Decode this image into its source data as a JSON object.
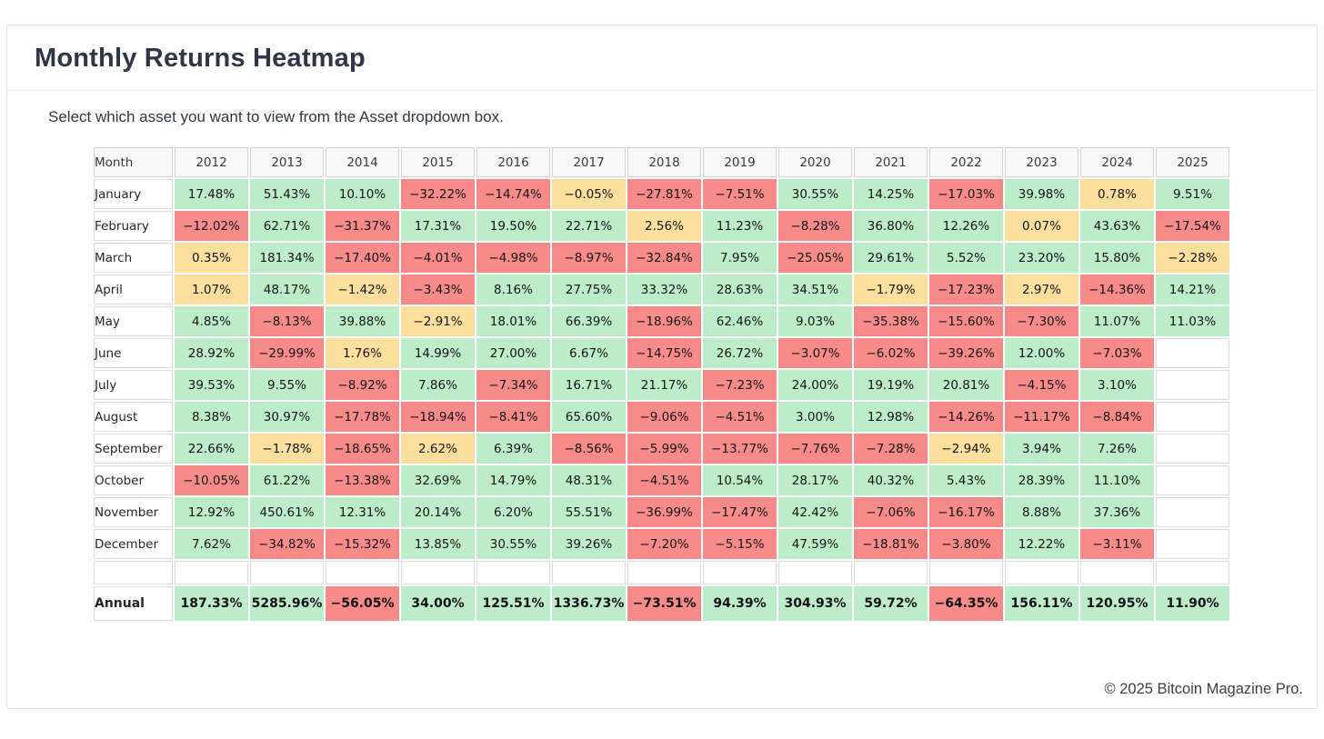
{
  "page": {
    "title": "Monthly Returns Heatmap",
    "subtitle": "Select which asset you want to view from the Asset dropdown box.",
    "footer": "© 2025 Bitcoin Magazine Pro."
  },
  "chart_data": {
    "type": "heatmap",
    "title": "Monthly Returns Heatmap",
    "columns": [
      "Month",
      "2012",
      "2013",
      "2014",
      "2015",
      "2016",
      "2017",
      "2018",
      "2019",
      "2020",
      "2021",
      "2022",
      "2023",
      "2024",
      "2025"
    ],
    "rows": [
      {
        "label": "January",
        "values": [
          "17.48%",
          "51.43%",
          "10.10%",
          "−32.22%",
          "−14.74%",
          "−0.05%",
          "−27.81%",
          "−7.51%",
          "30.55%",
          "14.25%",
          "−17.03%",
          "39.98%",
          "0.78%",
          "9.51%"
        ]
      },
      {
        "label": "February",
        "values": [
          "−12.02%",
          "62.71%",
          "−31.37%",
          "17.31%",
          "19.50%",
          "22.71%",
          "2.56%",
          "11.23%",
          "−8.28%",
          "36.80%",
          "12.26%",
          "0.07%",
          "43.63%",
          "−17.54%"
        ]
      },
      {
        "label": "March",
        "values": [
          "0.35%",
          "181.34%",
          "−17.40%",
          "−4.01%",
          "−4.98%",
          "−8.97%",
          "−32.84%",
          "7.95%",
          "−25.05%",
          "29.61%",
          "5.52%",
          "23.20%",
          "15.80%",
          "−2.28%"
        ]
      },
      {
        "label": "April",
        "values": [
          "1.07%",
          "48.17%",
          "−1.42%",
          "−3.43%",
          "8.16%",
          "27.75%",
          "33.32%",
          "28.63%",
          "34.51%",
          "−1.79%",
          "−17.23%",
          "2.97%",
          "−14.36%",
          "14.21%"
        ]
      },
      {
        "label": "May",
        "values": [
          "4.85%",
          "−8.13%",
          "39.88%",
          "−2.91%",
          "18.01%",
          "66.39%",
          "−18.96%",
          "62.46%",
          "9.03%",
          "−35.38%",
          "−15.60%",
          "−7.30%",
          "11.07%",
          "11.03%"
        ]
      },
      {
        "label": "June",
        "values": [
          "28.92%",
          "−29.99%",
          "1.76%",
          "14.99%",
          "27.00%",
          "6.67%",
          "−14.75%",
          "26.72%",
          "−3.07%",
          "−6.02%",
          "−39.26%",
          "12.00%",
          "−7.03%",
          ""
        ]
      },
      {
        "label": "July",
        "values": [
          "39.53%",
          "9.55%",
          "−8.92%",
          "7.86%",
          "−7.34%",
          "16.71%",
          "21.17%",
          "−7.23%",
          "24.00%",
          "19.19%",
          "20.81%",
          "−4.15%",
          "3.10%",
          ""
        ]
      },
      {
        "label": "August",
        "values": [
          "8.38%",
          "30.97%",
          "−17.78%",
          "−18.94%",
          "−8.41%",
          "65.60%",
          "−9.06%",
          "−4.51%",
          "3.00%",
          "12.98%",
          "−14.26%",
          "−11.17%",
          "−8.84%",
          ""
        ]
      },
      {
        "label": "September",
        "values": [
          "22.66%",
          "−1.78%",
          "−18.65%",
          "2.62%",
          "6.39%",
          "−8.56%",
          "−5.99%",
          "−13.77%",
          "−7.76%",
          "−7.28%",
          "−2.94%",
          "3.94%",
          "7.26%",
          ""
        ]
      },
      {
        "label": "October",
        "values": [
          "−10.05%",
          "61.22%",
          "−13.38%",
          "32.69%",
          "14.79%",
          "48.31%",
          "−4.51%",
          "10.54%",
          "28.17%",
          "40.32%",
          "5.43%",
          "28.39%",
          "11.10%",
          ""
        ]
      },
      {
        "label": "November",
        "values": [
          "12.92%",
          "450.61%",
          "12.31%",
          "20.14%",
          "6.20%",
          "55.51%",
          "−36.99%",
          "−17.47%",
          "42.42%",
          "−7.06%",
          "−16.17%",
          "8.88%",
          "37.36%",
          ""
        ]
      },
      {
        "label": "December",
        "values": [
          "7.62%",
          "−34.82%",
          "−15.32%",
          "13.85%",
          "30.55%",
          "39.26%",
          "−7.20%",
          "−5.15%",
          "47.59%",
          "−18.81%",
          "−3.80%",
          "12.22%",
          "−3.11%",
          ""
        ]
      },
      {
        "label": "",
        "values": [
          "",
          "",
          "",
          "",
          "",
          "",
          "",
          "",
          "",
          "",
          "",
          "",
          "",
          ""
        ]
      },
      {
        "label": "Annual",
        "values": [
          "187.33%",
          "5285.96%",
          "−56.05%",
          "34.00%",
          "125.51%",
          "1336.73%",
          "−73.51%",
          "94.39%",
          "304.93%",
          "59.72%",
          "−64.35%",
          "156.11%",
          "120.95%",
          "11.90%"
        ],
        "bold": true
      }
    ],
    "legend": {
      "positive_color": "#bdeccb",
      "negative_color": "#f88b8a",
      "neutral_color": "#fcdf9d",
      "positive_min": 3,
      "negative_max": -3
    },
    "layout": {
      "grid": true,
      "legend_position": "none"
    }
  }
}
